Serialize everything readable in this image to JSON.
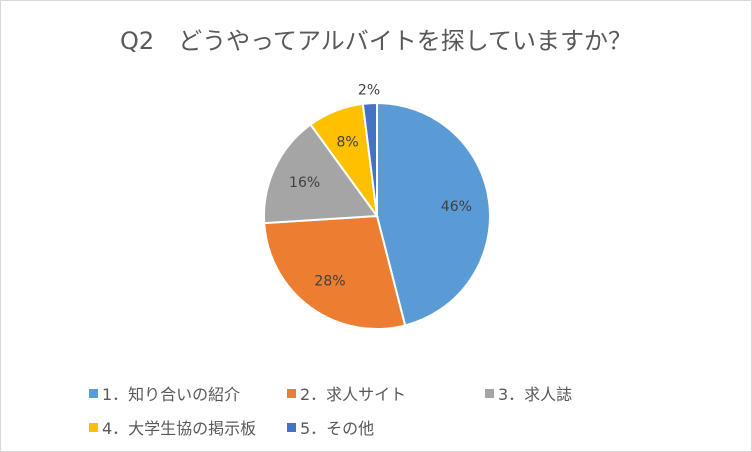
{
  "chart_data": {
    "type": "pie",
    "title": "Q2　どうやってアルバイトを探していますか？",
    "categories": [
      "1．知り合いの紹介",
      "2．求人サイト",
      "3．求人誌",
      "4．大学生協の掲示板",
      "5．その他"
    ],
    "values": [
      46,
      28,
      16,
      8,
      2
    ],
    "data_labels": [
      "46%",
      "28%",
      "16%",
      "8%",
      "2%"
    ],
    "colors": [
      "#5b9bd5",
      "#ed7d31",
      "#a5a5a5",
      "#ffc000",
      "#4472c4"
    ],
    "legend_position": "bottom"
  }
}
